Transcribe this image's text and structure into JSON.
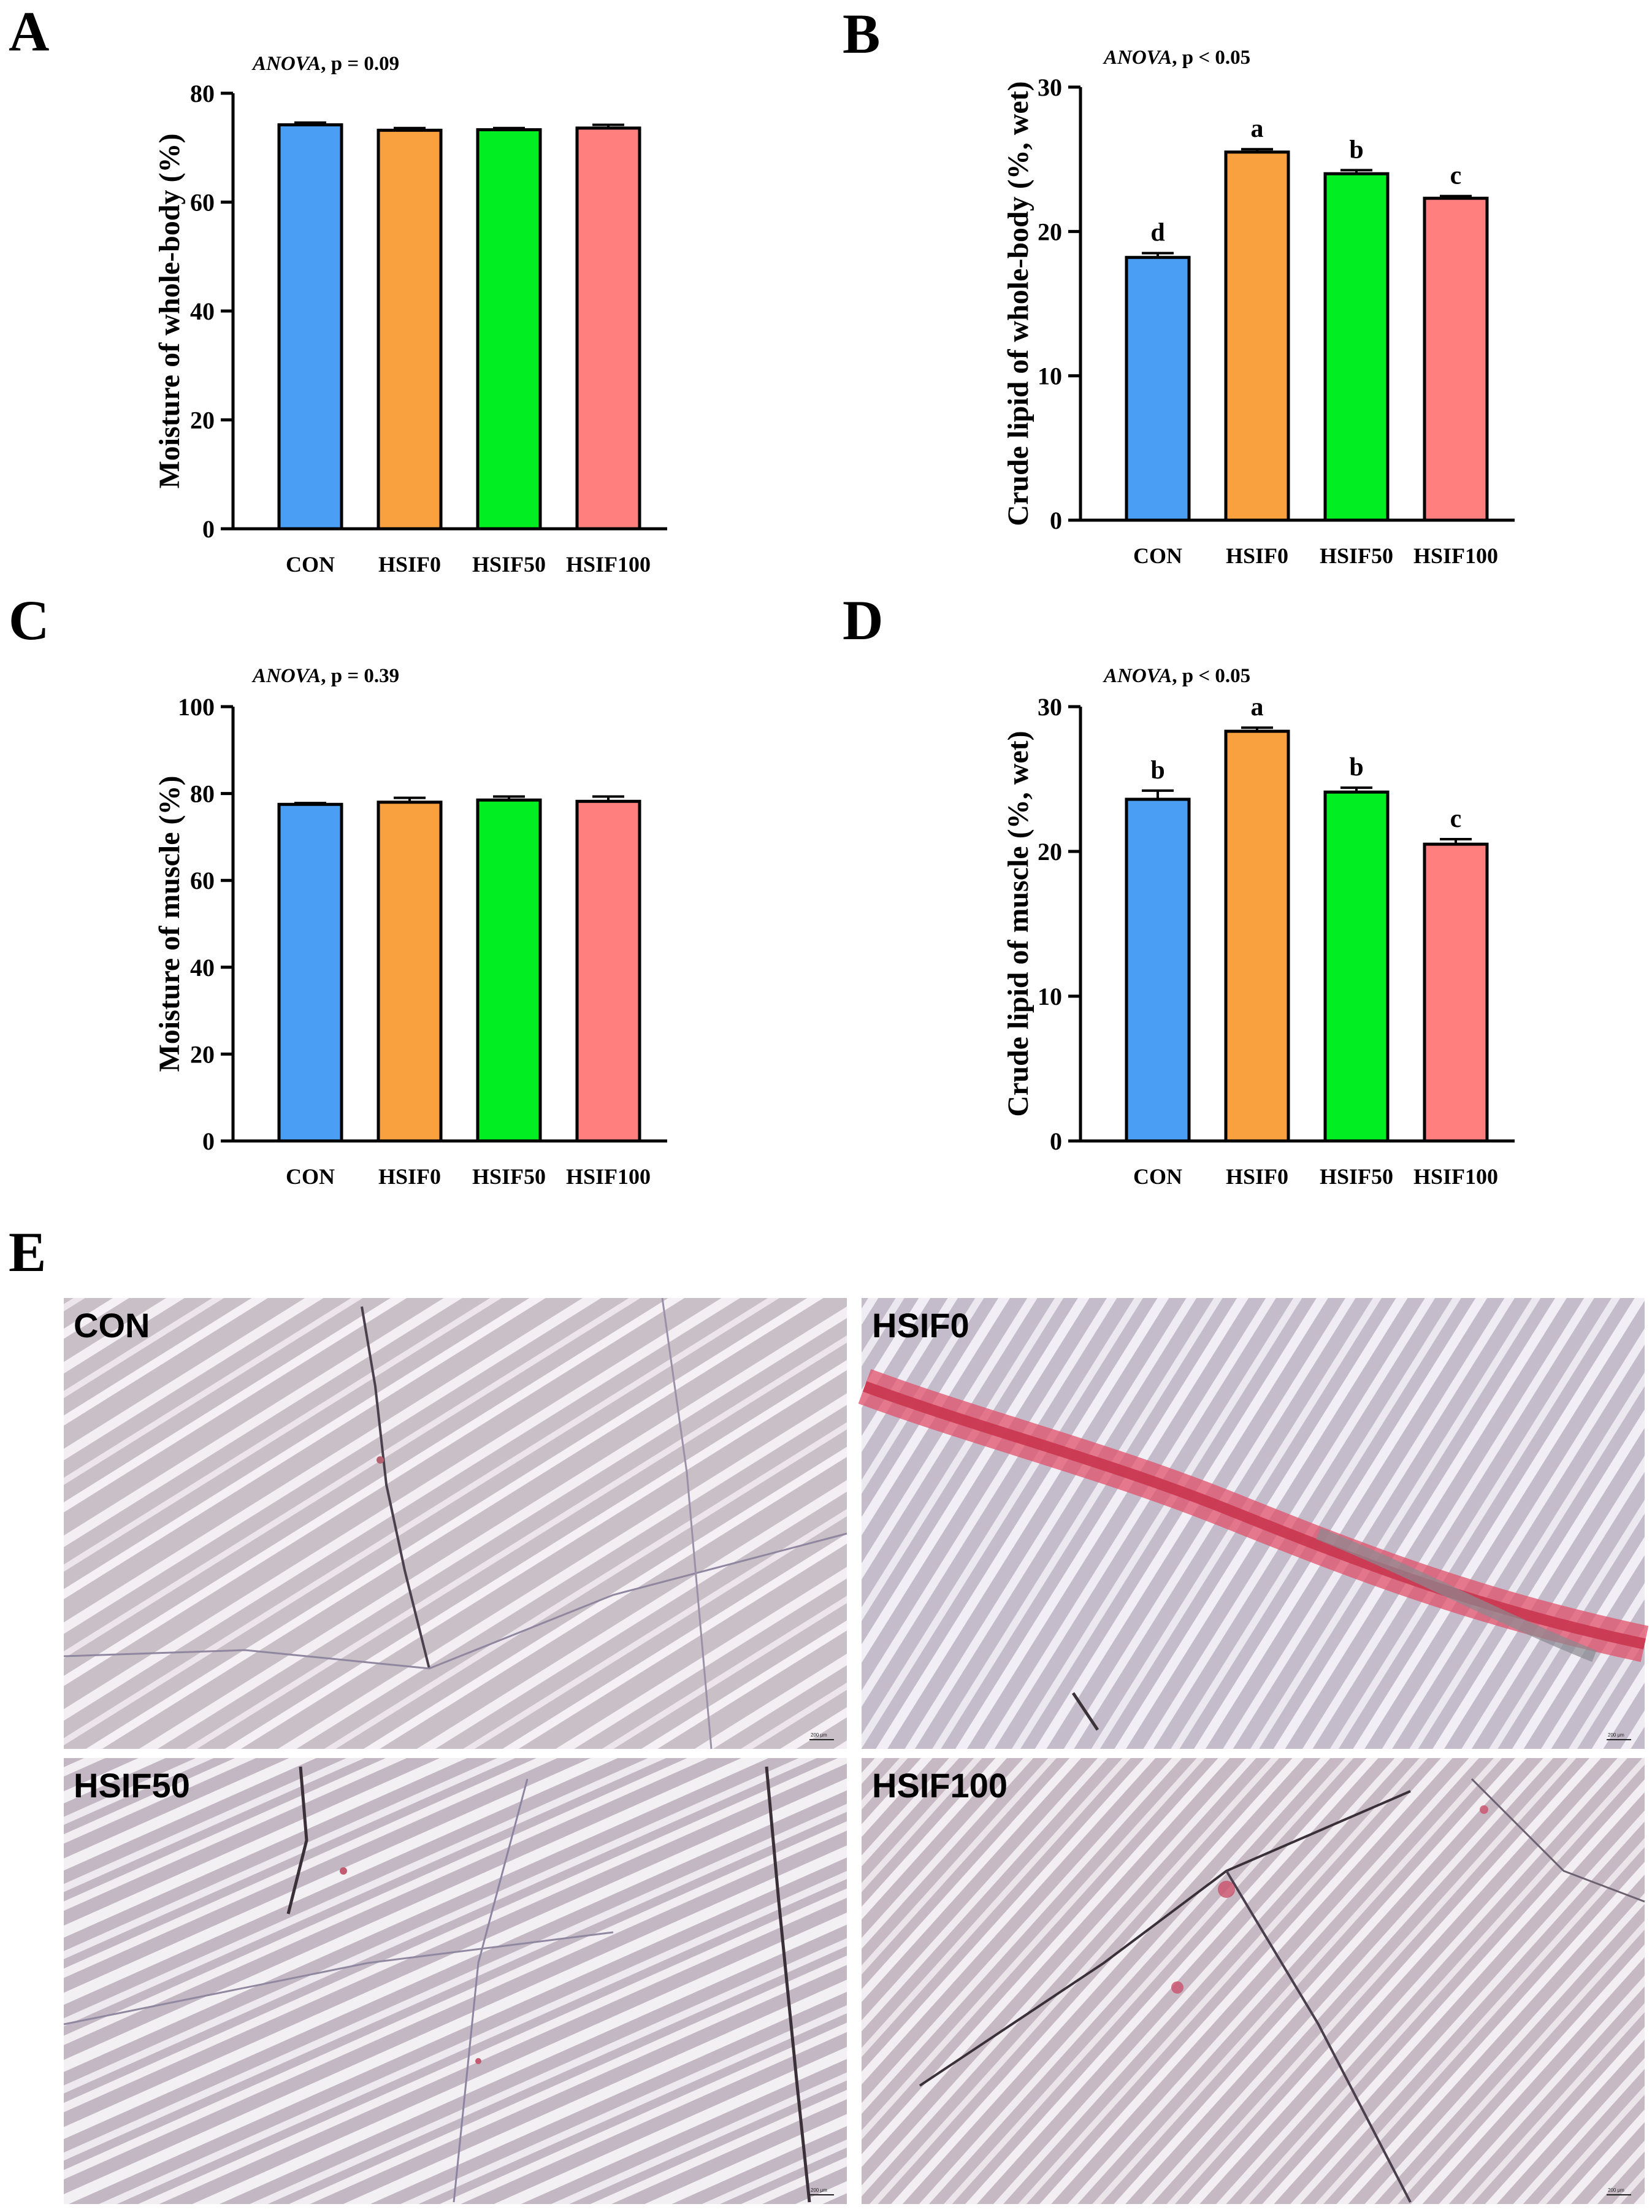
{
  "chart_data": [
    {
      "panel": "A",
      "type": "bar",
      "annotation": {
        "test": "ANOVA",
        "stat": "p = 0.09"
      },
      "categories": [
        "CON",
        "HSIF0",
        "HSIF50",
        "HSIF100"
      ],
      "values": [
        74.2,
        73.2,
        73.3,
        73.6
      ],
      "errors": [
        0.4,
        0.4,
        0.3,
        0.6
      ],
      "colors": [
        "#4a9ff5",
        "#f9a03f",
        "#00ee22",
        "#ff7f7f"
      ],
      "significance": [],
      "ylabel": "Moisture of whole-body (%)",
      "ylim": [
        0,
        80
      ],
      "yticks": [
        0,
        20,
        40,
        60,
        80
      ]
    },
    {
      "panel": "B",
      "type": "bar",
      "annotation": {
        "test": "ANOVA",
        "stat": "p < 0.05"
      },
      "categories": [
        "CON",
        "HSIF0",
        "HSIF50",
        "HSIF100"
      ],
      "values": [
        18.2,
        25.5,
        24.0,
        22.3
      ],
      "errors": [
        0.3,
        0.2,
        0.25,
        0.15
      ],
      "colors": [
        "#4a9ff5",
        "#f9a03f",
        "#00ee22",
        "#ff7f7f"
      ],
      "significance": [
        "d",
        "a",
        "b",
        "c"
      ],
      "ylabel": "Crude lipid of whole-body (%, wet)",
      "ylim": [
        0,
        30
      ],
      "yticks": [
        0,
        10,
        20,
        30
      ]
    },
    {
      "panel": "C",
      "type": "bar",
      "annotation": {
        "test": "ANOVA",
        "stat": "p = 0.39"
      },
      "categories": [
        "CON",
        "HSIF0",
        "HSIF50",
        "HSIF100"
      ],
      "values": [
        77.5,
        78.0,
        78.5,
        78.2
      ],
      "errors": [
        0.3,
        1.0,
        0.8,
        1.1
      ],
      "colors": [
        "#4a9ff5",
        "#f9a03f",
        "#00ee22",
        "#ff7f7f"
      ],
      "significance": [],
      "ylabel": "Moisture of muscle (%)",
      "ylim": [
        0,
        100
      ],
      "yticks": [
        0,
        20,
        40,
        60,
        80,
        100
      ]
    },
    {
      "panel": "D",
      "type": "bar",
      "annotation": {
        "test": "ANOVA",
        "stat": "p < 0.05"
      },
      "categories": [
        "CON",
        "HSIF0",
        "HSIF50",
        "HSIF100"
      ],
      "values": [
        23.6,
        28.3,
        24.1,
        20.5
      ],
      "errors": [
        0.6,
        0.25,
        0.3,
        0.35
      ],
      "colors": [
        "#4a9ff5",
        "#f9a03f",
        "#00ee22",
        "#ff7f7f"
      ],
      "significance": [
        "b",
        "a",
        "b",
        "c"
      ],
      "ylabel": "Crude lipid of muscle (%, wet)",
      "ylim": [
        0,
        30
      ],
      "yticks": [
        0,
        10,
        20,
        30
      ]
    }
  ],
  "panel_E": {
    "letter": "E",
    "images": [
      {
        "label": "CON",
        "stain": "low"
      },
      {
        "label": "HSIF0",
        "stain": "high"
      },
      {
        "label": "HSIF50",
        "stain": "low"
      },
      {
        "label": "HSIF100",
        "stain": "medium"
      }
    ],
    "scale_bar_text": "200 μm"
  }
}
